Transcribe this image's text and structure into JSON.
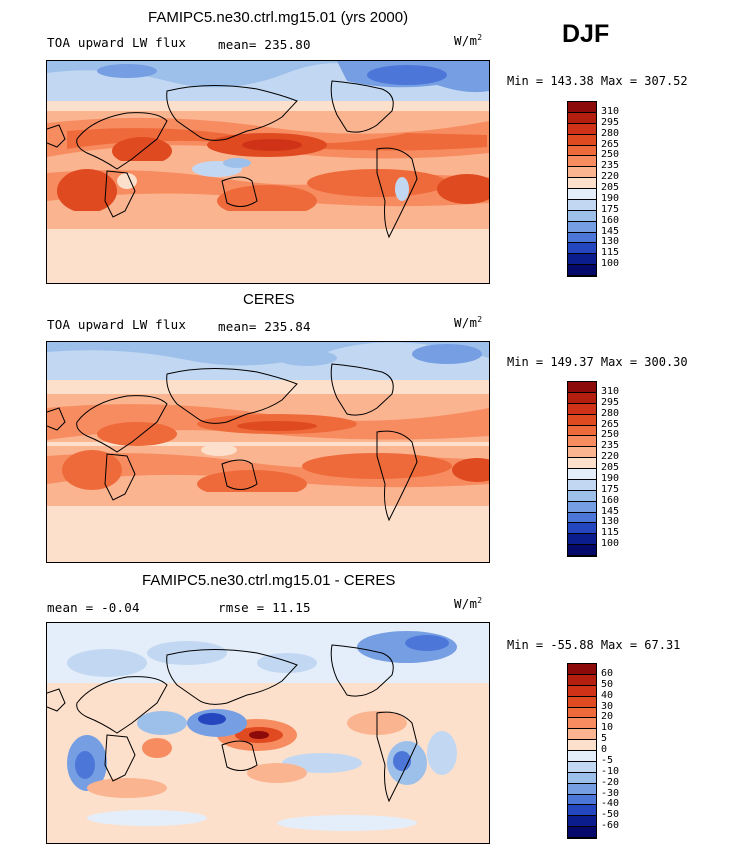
{
  "season": "DJF",
  "panels": [
    {
      "title": "FAMIPC5.ne30.ctrl.mg15.01 (yrs 2000)",
      "variable": "TOA upward LW flux",
      "stat_text": "mean= 235.80",
      "units_base": "W/m",
      "units_exp": "2",
      "minmax": "Min = 143.38 Max = 307.52",
      "colorbar_labels": [
        "310",
        "295",
        "280",
        "265",
        "250",
        "235",
        "220",
        "205",
        "190",
        "175",
        "160",
        "145",
        "130",
        "115",
        "100"
      ],
      "colorbar_colors": [
        "#8c0a0a",
        "#b41e0e",
        "#cf3216",
        "#e04a20",
        "#ee6a3a",
        "#f78c60",
        "#fbb490",
        "#fde0cc",
        "#e4eefa",
        "#c2d8f2",
        "#9dc0eb",
        "#769ee3",
        "#4c77d8",
        "#2447c0",
        "#0b1d8c",
        "#050a6a"
      ]
    },
    {
      "title": "CERES",
      "variable": "TOA upward LW flux",
      "stat_text": "mean= 235.84",
      "units_base": "W/m",
      "units_exp": "2",
      "minmax": "Min = 149.37 Max = 300.30",
      "colorbar_labels": [
        "310",
        "295",
        "280",
        "265",
        "250",
        "235",
        "220",
        "205",
        "190",
        "175",
        "160",
        "145",
        "130",
        "115",
        "100"
      ],
      "colorbar_colors": [
        "#8c0a0a",
        "#b41e0e",
        "#cf3216",
        "#e04a20",
        "#ee6a3a",
        "#f78c60",
        "#fbb490",
        "#fde0cc",
        "#e4eefa",
        "#c2d8f2",
        "#9dc0eb",
        "#769ee3",
        "#4c77d8",
        "#2447c0",
        "#0b1d8c",
        "#050a6a"
      ]
    },
    {
      "title": "FAMIPC5.ne30.ctrl.mg15.01 - CERES",
      "stat_mean": "mean =  -0.04",
      "stat_rmse": "rmse =  11.15",
      "units_base": "W/m",
      "units_exp": "2",
      "minmax": "Min = -55.88 Max =  67.31",
      "colorbar_labels": [
        "60",
        "50",
        "40",
        "30",
        "20",
        "10",
        "5",
        "0",
        "-5",
        "-10",
        "-20",
        "-30",
        "-40",
        "-50",
        "-60"
      ],
      "colorbar_colors": [
        "#8c0a0a",
        "#b41e0e",
        "#cf3216",
        "#e04a20",
        "#ee6a3a",
        "#f78c60",
        "#fbb490",
        "#fde0cc",
        "#e4eefa",
        "#c2d8f2",
        "#9dc0eb",
        "#769ee3",
        "#4c77d8",
        "#2447c0",
        "#0b1d8c",
        "#050a6a"
      ]
    }
  ]
}
